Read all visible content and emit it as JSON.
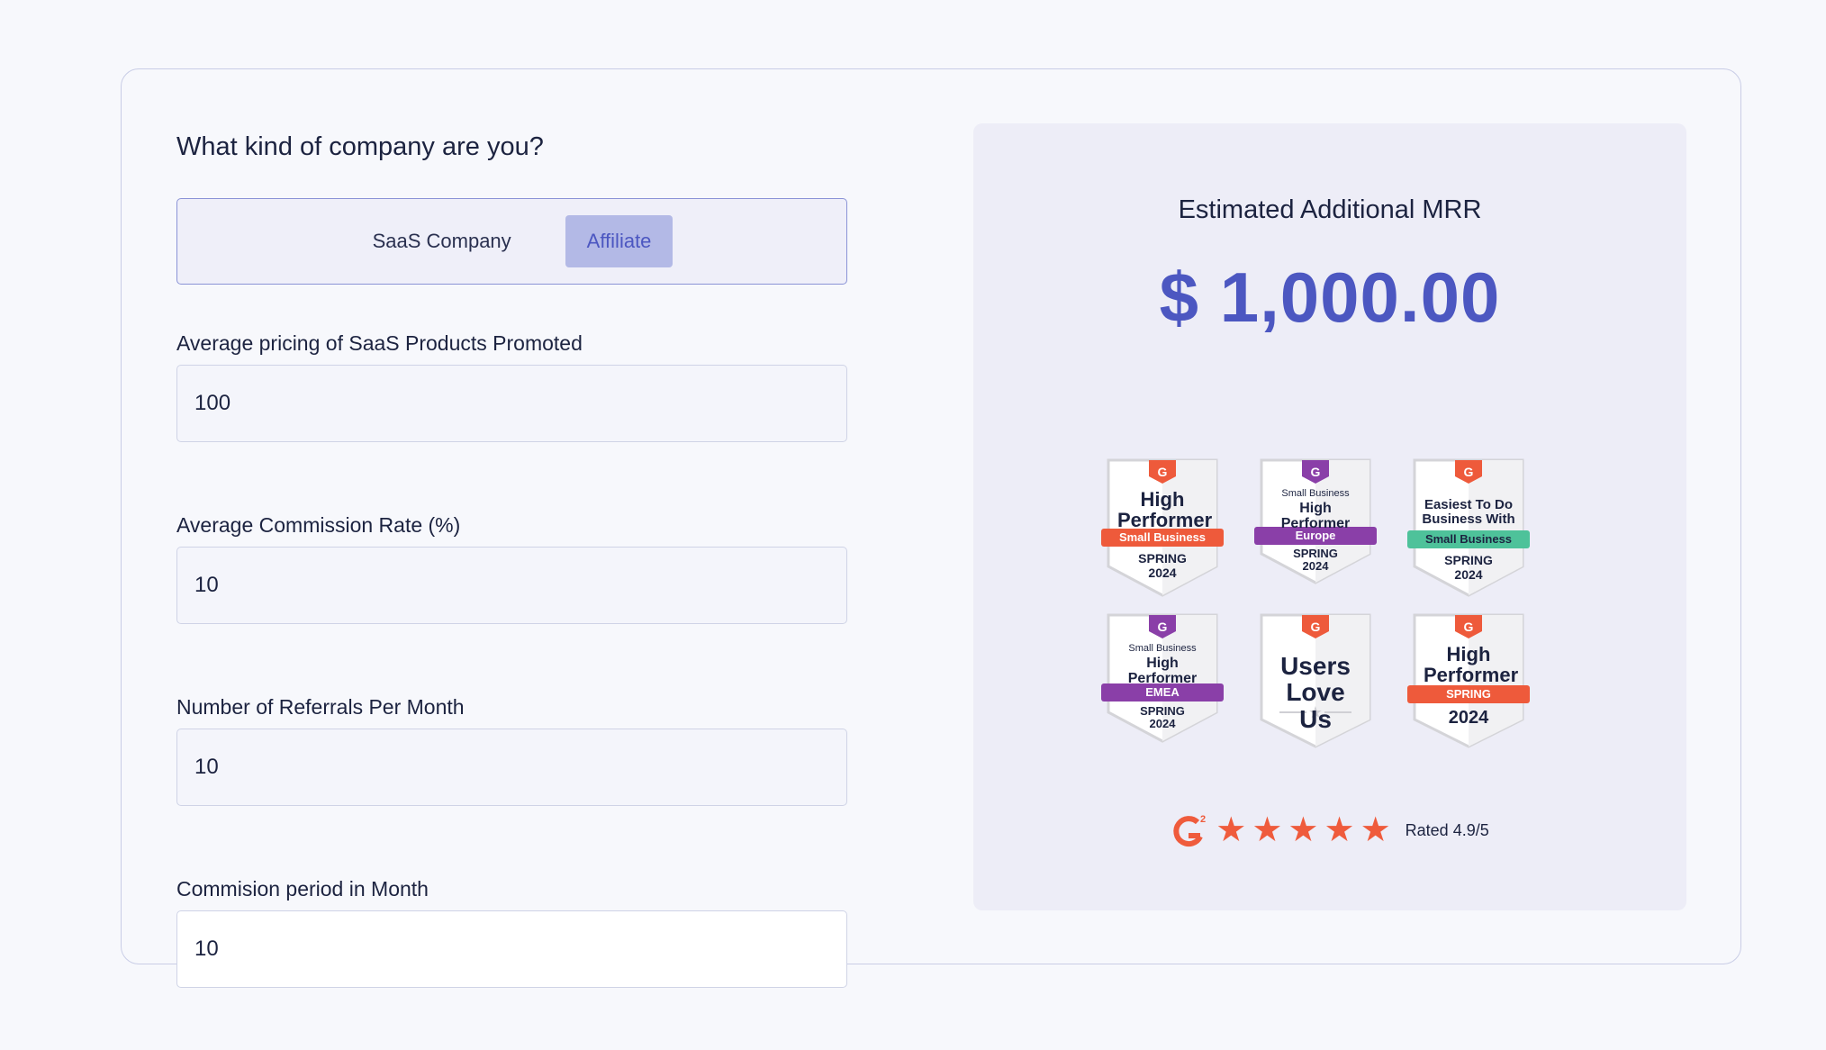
{
  "form": {
    "question": "What kind of company are you?",
    "company_types": [
      {
        "label": "SaaS Company",
        "selected": false
      },
      {
        "label": "Affiliate",
        "selected": true
      }
    ],
    "fields": [
      {
        "label": "Average pricing of SaaS Products Promoted",
        "value": "100"
      },
      {
        "label": "Average Commission Rate (%)",
        "value": "10"
      },
      {
        "label": "Number of Referrals Per Month",
        "value": "10"
      },
      {
        "label": "Commision period in Month",
        "value": "10"
      }
    ]
  },
  "result": {
    "label": "Estimated Additional MRR",
    "value": "$ 1,000.00"
  },
  "badges": [
    {
      "top": "",
      "title": "High Performer",
      "ribbon": "Small Business",
      "ribbon_color": "#ee5a3b",
      "shield_color": "#ee5a3b",
      "season": "SPRING",
      "year": "2024"
    },
    {
      "top": "Small Business",
      "title": "High Performer",
      "ribbon": "Europe",
      "ribbon_color": "#8a3fa8",
      "shield_color": "#8a3fa8",
      "season": "SPRING",
      "year": "2024"
    },
    {
      "top": "",
      "title": "Easiest To Do Business With",
      "ribbon": "Small Business",
      "ribbon_color": "#4ec29a",
      "shield_color": "#ee5a3b",
      "season": "SPRING",
      "year": "2024"
    },
    {
      "top": "Small Business",
      "title": "High Performer",
      "ribbon": "EMEA",
      "ribbon_color": "#8a3fa8",
      "shield_color": "#8a3fa8",
      "season": "SPRING",
      "year": "2024"
    },
    {
      "top": "",
      "title": "Users Love Us",
      "ribbon": "",
      "ribbon_color": "",
      "shield_color": "#ee5a3b",
      "season": "",
      "year": ""
    },
    {
      "top": "",
      "title": "High Performer",
      "ribbon": "SPRING",
      "ribbon_color": "#ee5a3b",
      "shield_color": "#ee5a3b",
      "season": "",
      "year": "2024"
    }
  ],
  "rating": {
    "stars": 5,
    "text": "Rated 4.9/5",
    "star_color": "#ef5b3c"
  }
}
